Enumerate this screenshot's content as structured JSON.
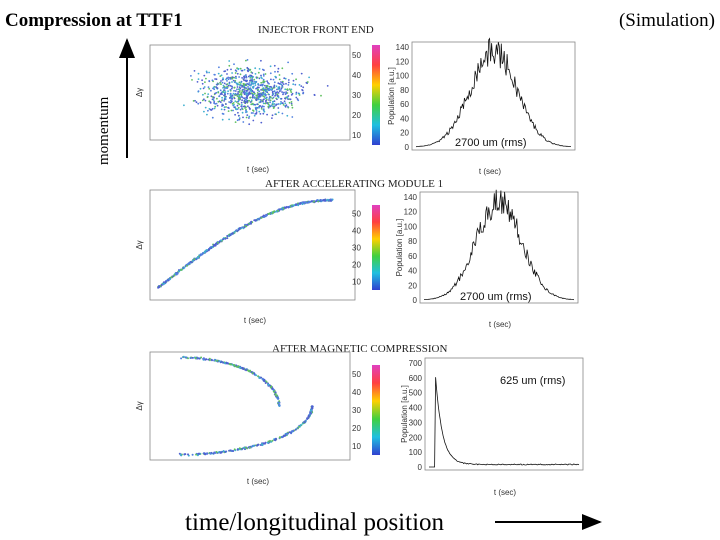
{
  "header": {
    "title": "Compression at TTF1",
    "note": "(Simulation)"
  },
  "axes": {
    "y_label": "momentum",
    "x_label": "time/longitudinal position"
  },
  "panels": [
    {
      "heading": "INJECTOR FRONT END",
      "scatter_y_label": "Δγ",
      "scatter_x_label": "t (sec)",
      "colorbar_ticks": [
        "10",
        "20",
        "30",
        "40",
        "50"
      ],
      "hist_y_label": "Population [a.u.]",
      "hist_x_label": "t (sec)",
      "hist_yticks": [
        "0",
        "20",
        "40",
        "60",
        "80",
        "100",
        "120",
        "140"
      ],
      "annotation": "2700 um (rms)"
    },
    {
      "heading": "AFTER ACCELERATING MODULE 1",
      "scatter_y_label": "Δγ",
      "scatter_x_label": "t (sec)",
      "colorbar_ticks": [
        "10",
        "20",
        "30",
        "40",
        "50"
      ],
      "hist_y_label": "Population [a.u.]",
      "hist_x_label": "t (sec)",
      "hist_yticks": [
        "0",
        "20",
        "40",
        "60",
        "80",
        "100",
        "120",
        "140"
      ],
      "annotation": "2700 um (rms)"
    },
    {
      "heading": "AFTER MAGNETIC COMPRESSION",
      "scatter_y_label": "Δγ",
      "scatter_x_label": "t (sec)",
      "colorbar_ticks": [
        "10",
        "20",
        "30",
        "40",
        "50"
      ],
      "hist_y_label": "Population [a.u.]",
      "hist_x_label": "t (sec)",
      "hist_yticks": [
        "0",
        "100",
        "200",
        "300",
        "400",
        "500",
        "600",
        "700"
      ],
      "annotation": "625 um (rms)"
    }
  ]
}
